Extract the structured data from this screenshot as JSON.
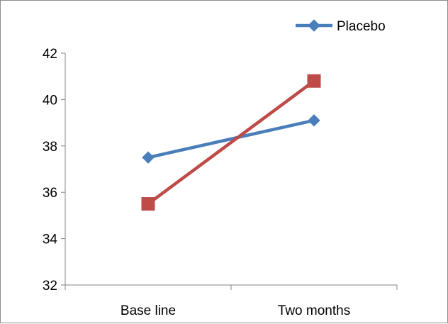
{
  "chart_data": {
    "type": "line",
    "categories": [
      "Base line",
      "Two months"
    ],
    "series": [
      {
        "name": "Placebo",
        "values": [
          37.5,
          39.1
        ],
        "color": "#4a7ebb",
        "marker": "diamond"
      },
      {
        "name": "",
        "values": [
          35.5,
          40.8
        ],
        "color": "#be4b48",
        "marker": "square"
      }
    ],
    "ylim": [
      32,
      42
    ],
    "yticks": [
      32,
      34,
      36,
      38,
      40,
      42
    ],
    "grid": false,
    "legend_position": "top-right"
  }
}
